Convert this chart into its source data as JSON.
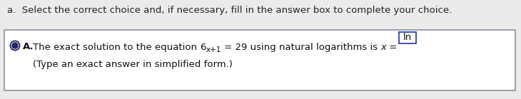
{
  "bg_color": "#ebebeb",
  "header_text": "a.  Select the correct choice and, if necessary, fill in the answer box to complete your choice.",
  "header_fontsize": 9.5,
  "header_color": "#222222",
  "box_bg": "#ffffff",
  "box_border": "#888899",
  "radio_color": "#222266",
  "option_label": "A.",
  "option_text_1_pre": "The exact solution to the equation ",
  "equation_base": "6",
  "equation_exp": "x+1",
  "equation_mid": " = 29 using natural logarithms is ",
  "equation_x_eq": "x =",
  "answer_box_text": "ln",
  "answer_box_border": "#3344aa",
  "option_text_2": "(Type an exact answer in simplified form.)",
  "main_fontsize": 9.5,
  "small_fontsize": 7.5,
  "fig_width": 7.3,
  "fig_height": 1.39,
  "dpi": 100
}
